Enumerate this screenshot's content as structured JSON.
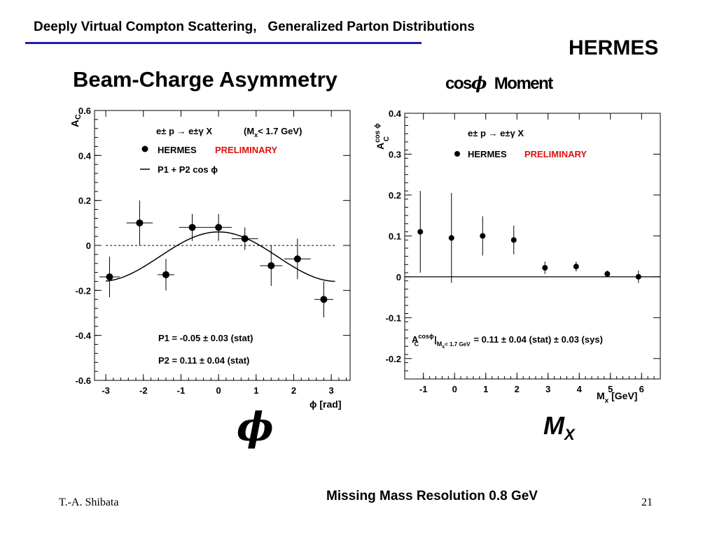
{
  "slide": {
    "header_title": "Deeply Virtual Compton Scattering,   Generalized Parton Distributions",
    "experiment": "HERMES",
    "left_title": "Beam-Charge Asymmetry",
    "right_title_text": "cos",
    "right_title_phi": "ϕ",
    "right_title_moment": "Moment",
    "big_phi": "ϕ",
    "big_mx_main": "M",
    "big_mx_sub": "X",
    "footer_note": "Missing Mass Resolution 0.8 GeV",
    "author": "T.-A. Shibata",
    "page_number": "21"
  },
  "chart_data": [
    {
      "type": "scatter",
      "ylabel_main": "A",
      "ylabel_sub": "C",
      "xlabel": "ϕ [rad]",
      "xlim": [
        -3.3,
        3.5
      ],
      "ylim": [
        -0.6,
        0.6
      ],
      "x_ticks": [
        -3,
        -2,
        -1,
        0,
        1,
        2,
        3
      ],
      "y_ticks": [
        {
          "v": 0.6,
          "label": "0.6"
        },
        {
          "v": 0.4,
          "label": "0.4"
        },
        {
          "v": 0.2,
          "label": "0.2"
        },
        {
          "v": 0,
          "label": "0"
        },
        {
          "v": -0.2,
          "label": "-0.2"
        },
        {
          "v": -0.4,
          "label": "-0.4"
        },
        {
          "v": -0.6,
          "label": "-0.6"
        }
      ],
      "reaction": "e± p → e±γ X",
      "cut": "(M",
      "cut_sub": "x",
      "cut_rest": "< 1.7 GeV)",
      "legend_points": "HERMES",
      "legend_prelim": "PRELIMINARY",
      "legend_fit": "P1 + P2 cos ϕ",
      "result1": "P1 = -0.05 ± 0.03 (stat)",
      "result2": "P2 =  0.11 ± 0.04 (stat)",
      "zero_line": "dotted",
      "fit": {
        "p1": -0.05,
        "p2": 0.11,
        "x_from": -3.0,
        "x_to": 3.1
      },
      "points": [
        {
          "x": -2.9,
          "y": -0.14,
          "ey": 0.09,
          "ex": 0.27
        },
        {
          "x": -2.1,
          "y": 0.1,
          "ey": 0.1,
          "ex": 0.35
        },
        {
          "x": -1.4,
          "y": -0.13,
          "ey": 0.07,
          "ex": 0.22
        },
        {
          "x": -0.7,
          "y": 0.08,
          "ey": 0.06,
          "ex": 0.35
        },
        {
          "x": 0.0,
          "y": 0.08,
          "ey": 0.06,
          "ex": 0.35
        },
        {
          "x": 0.7,
          "y": 0.03,
          "ey": 0.05,
          "ex": 0.35
        },
        {
          "x": 1.4,
          "y": -0.09,
          "ey": 0.09,
          "ex": 0.3
        },
        {
          "x": 2.1,
          "y": -0.06,
          "ey": 0.09,
          "ex": 0.35
        },
        {
          "x": 2.8,
          "y": -0.24,
          "ey": 0.08,
          "ex": 0.25
        }
      ]
    },
    {
      "type": "scatter",
      "ylabel_main": "A",
      "ylabel_sub": "C",
      "ylabel_sup": "cos ϕ",
      "xlabel_main": "M",
      "xlabel_sub": "x",
      "xlabel_rest": " [GeV]",
      "xlim": [
        -1.6,
        6.6
      ],
      "ylim": [
        -0.25,
        0.4
      ],
      "x_ticks": [
        -1,
        0,
        1,
        2,
        3,
        4,
        5,
        6
      ],
      "y_ticks": [
        {
          "v": 0.4,
          "label": "0.4"
        },
        {
          "v": 0.3,
          "label": "0.3"
        },
        {
          "v": 0.2,
          "label": "0.2"
        },
        {
          "v": 0.1,
          "label": "0.1"
        },
        {
          "v": 0,
          "label": "0"
        },
        {
          "v": -0.1,
          "label": "-0.1"
        },
        {
          "v": -0.2,
          "label": "-0.2"
        }
      ],
      "reaction": "e± p → e±γ X",
      "legend_points": "HERMES",
      "legend_prelim": "PRELIMINARY",
      "result_main": "A",
      "result_sub": "C",
      "result_sup": "cosϕ",
      "result_bar": "|",
      "result_cut": "M",
      "result_cut_sub": "x",
      "result_cut_rest": "< 1.7 GeV",
      "result_value": "= 0.11 ± 0.04 (stat) ± 0.03 (sys)",
      "zero_line": "solid",
      "points": [
        {
          "x": -1.1,
          "y": 0.11,
          "ey": 0.1
        },
        {
          "x": -0.1,
          "y": 0.095,
          "ey": 0.11
        },
        {
          "x": 0.9,
          "y": 0.1,
          "ey": 0.048
        },
        {
          "x": 1.9,
          "y": 0.09,
          "ey": 0.035
        },
        {
          "x": 2.9,
          "y": 0.022,
          "ey": 0.015
        },
        {
          "x": 3.9,
          "y": 0.025,
          "ey": 0.012
        },
        {
          "x": 4.9,
          "y": 0.007,
          "ey": 0.008
        },
        {
          "x": 5.9,
          "y": 0.0,
          "ey": 0.015
        }
      ]
    }
  ]
}
